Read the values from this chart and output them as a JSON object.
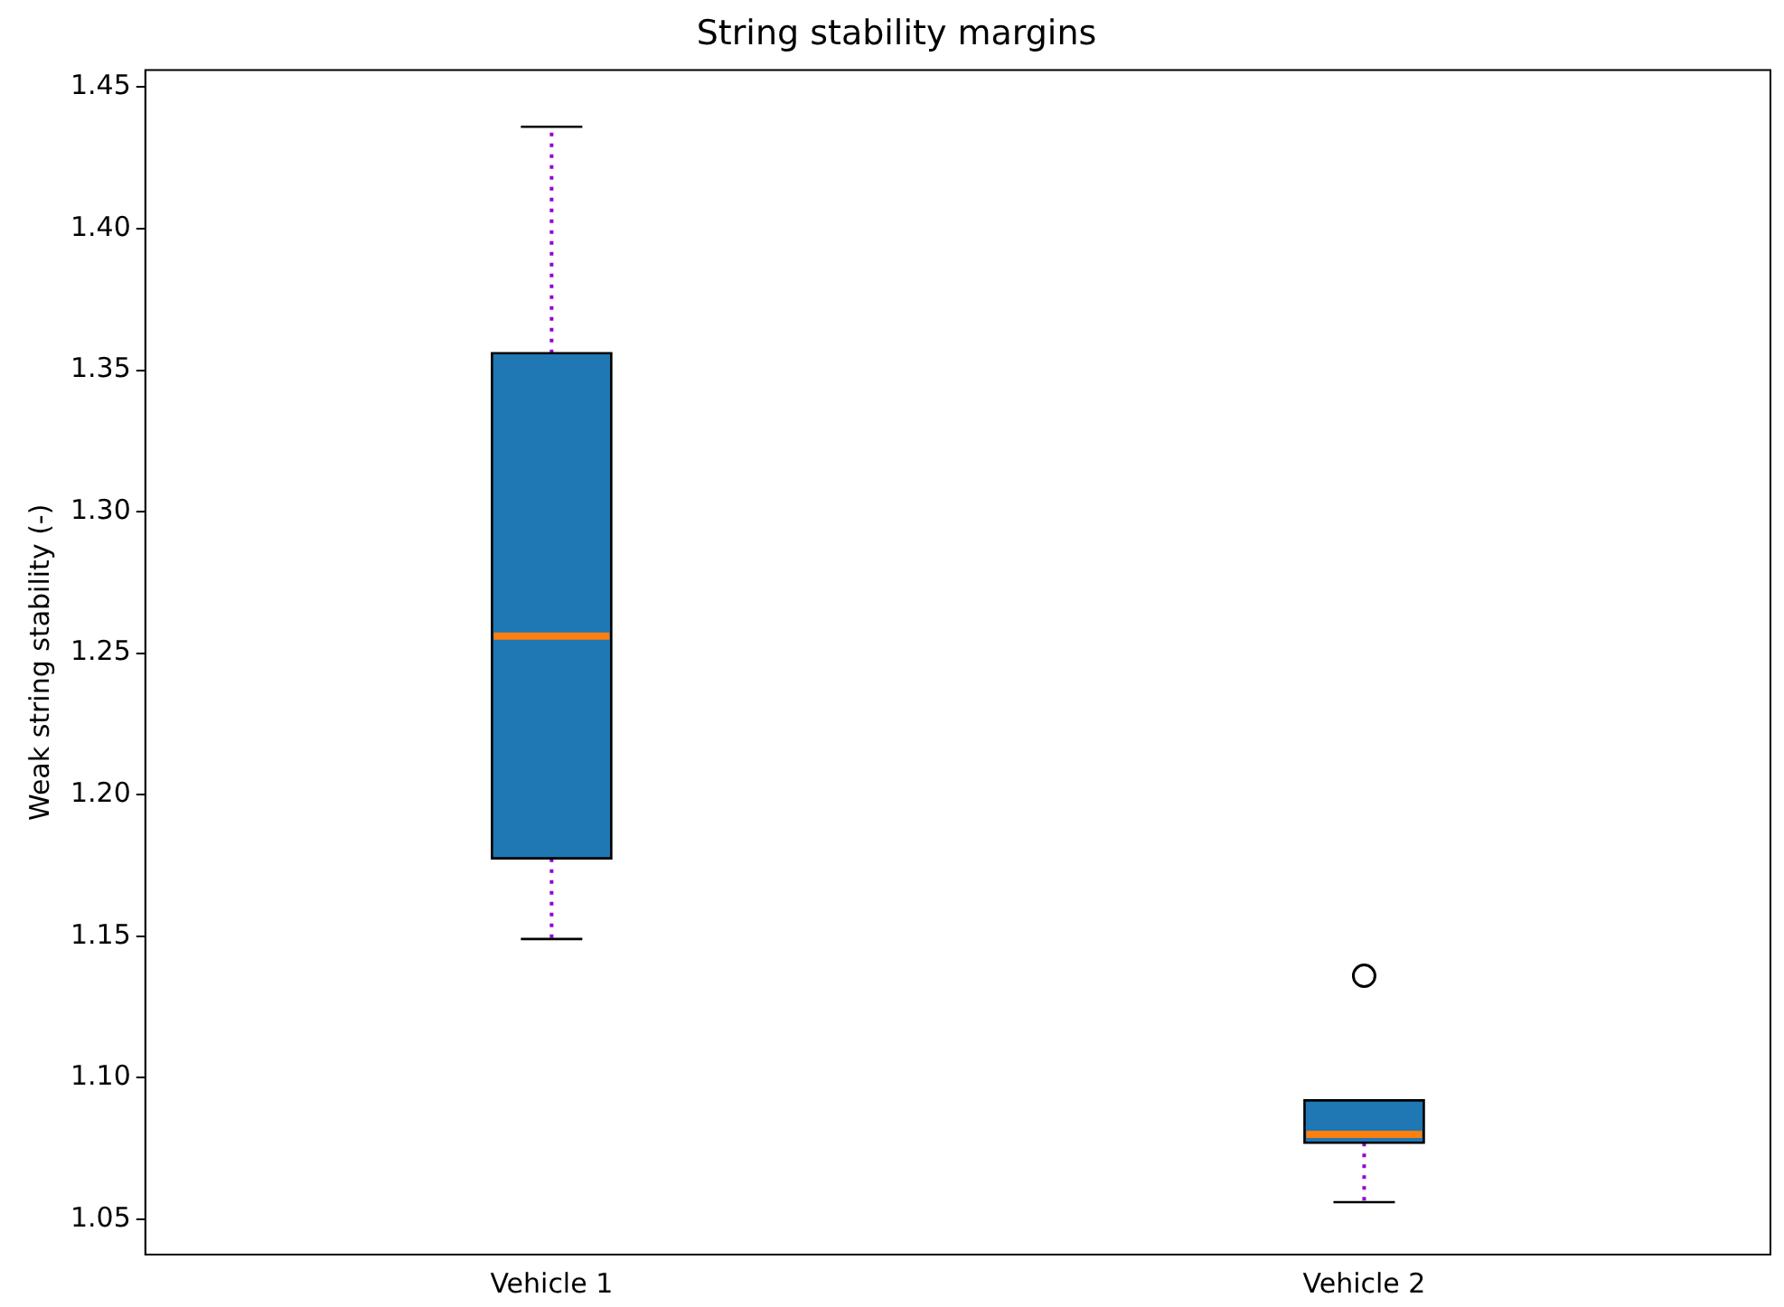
{
  "chart_data": {
    "type": "box",
    "title": "String stability margins",
    "ylabel": "Weak string stability (-)",
    "categories": [
      "Vehicle 1",
      "Vehicle 2"
    ],
    "color": "#1f77b4",
    "boxes": [
      {
        "low": 1.149,
        "q1": 1.1775,
        "median": 1.256,
        "q3": 1.356,
        "high": 1.436
      },
      {
        "low": 1.056,
        "q1": 1.077,
        "median": 1.08,
        "q3": 1.092,
        "high": 1.092,
        "outliers": [
          1.136
        ]
      }
    ],
    "ylim": [
      1.0375,
      1.456
    ],
    "yticks": [
      1.05,
      {
        "value": 1.1,
        "label": "1.10"
      },
      1.15,
      {
        "value": 1.2,
        "label": "1.20"
      },
      1.25,
      {
        "value": 1.3,
        "label": "1.30"
      },
      1.35,
      {
        "value": 1.4,
        "label": "1.40"
      },
      1.45
    ],
    "grid": false
  }
}
